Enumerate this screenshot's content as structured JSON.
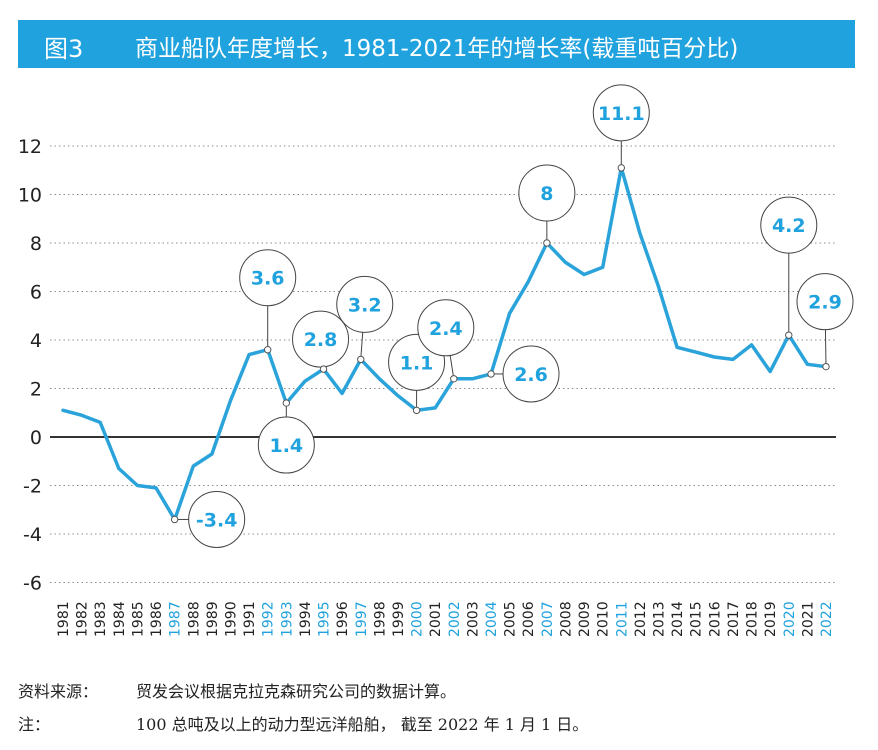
{
  "header": {
    "figure_number": "图3",
    "title": "商业船队年度增长，1981-2021年的增长率(载重吨百分比)"
  },
  "footer": {
    "source_label": "资料来源：",
    "source_text": "贸发会议根据克拉克森研究公司的数据计算。",
    "note_label": "注：",
    "note_text": "100 总吨及以上的动力型远洋船舶， 截至 2022 年 1 月 1 日。"
  },
  "chart_data": {
    "type": "line",
    "title": "商业船队年度增长，1981-2021年的增长率(载重吨百分比)",
    "xlabel": "",
    "ylabel": "",
    "ylim": [
      -6,
      12
    ],
    "yticks": [
      12,
      10,
      8,
      6,
      4,
      2,
      0,
      -2,
      -4,
      -6
    ],
    "grid": "dotted horizontal",
    "legend": "none",
    "categories": [
      "1981",
      "1982",
      "1983",
      "1984",
      "1985",
      "1986",
      "1987",
      "1988",
      "1989",
      "1990",
      "1991",
      "1992",
      "1993",
      "1994",
      "1995",
      "1996",
      "1997",
      "1998",
      "1999",
      "2000",
      "2001",
      "2002",
      "2003",
      "2004",
      "2005",
      "2006",
      "2007",
      "2008",
      "2009",
      "2010",
      "2011",
      "2012",
      "2013",
      "2014",
      "2015",
      "2016",
      "2017",
      "2018",
      "2019",
      "2020",
      "2021",
      "2022"
    ],
    "highlighted_years": [
      "1987",
      "1992",
      "1993",
      "1995",
      "1997",
      "2000",
      "2002",
      "2004",
      "2007",
      "2011",
      "2020",
      "2022"
    ],
    "series": [
      {
        "values": [
          1.1,
          0.9,
          0.6,
          -1.3,
          -2.0,
          -2.1,
          -3.4,
          -1.2,
          -0.7,
          1.5,
          3.4,
          3.6,
          1.4,
          2.3,
          2.8,
          1.8,
          3.2,
          2.4,
          1.7,
          1.1,
          1.2,
          2.4,
          2.4,
          2.6,
          5.1,
          6.4,
          8.0,
          7.2,
          6.7,
          7.0,
          11.1,
          8.4,
          6.2,
          3.7,
          3.5,
          3.3,
          3.2,
          3.8,
          2.7,
          4.2,
          3.0,
          2.9
        ]
      }
    ],
    "annotations": [
      {
        "year": "1987",
        "label": "-3.4"
      },
      {
        "year": "1992",
        "label": "3.6"
      },
      {
        "year": "1993",
        "label": "1.4"
      },
      {
        "year": "1995",
        "label": "2.8"
      },
      {
        "year": "1997",
        "label": "3.2"
      },
      {
        "year": "2000",
        "label": "1.1"
      },
      {
        "year": "2002",
        "label": "2.4"
      },
      {
        "year": "2004",
        "label": "2.6"
      },
      {
        "year": "2007",
        "label": "8"
      },
      {
        "year": "2011",
        "label": "11.1"
      },
      {
        "year": "2020",
        "label": "4.2"
      },
      {
        "year": "2022",
        "label": "2.9"
      }
    ],
    "colors": {
      "line": "#2aa3db",
      "highlight_text": "#1fa2dd",
      "tick_text": "#222222",
      "grid": "#8c8c8c",
      "zero_line": "#333333",
      "bubble_border": "#444444"
    }
  }
}
